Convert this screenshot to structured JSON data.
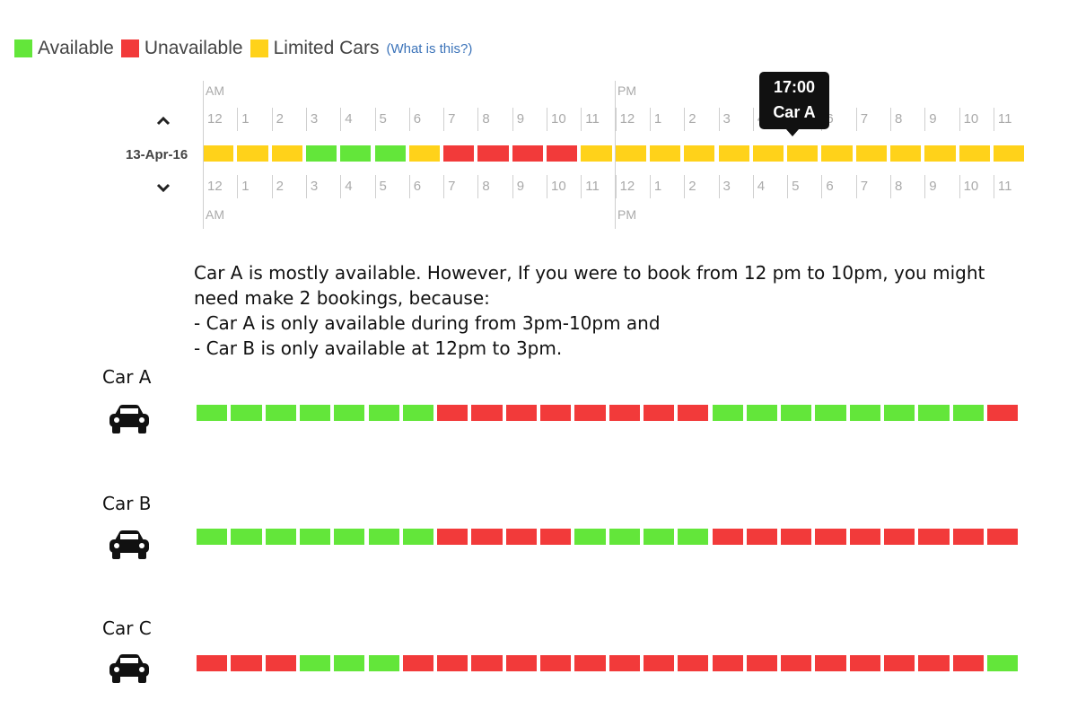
{
  "legend": {
    "items": [
      {
        "label": "Available",
        "color": "#63e63a"
      },
      {
        "label": "Unavailable",
        "color": "#f23a3a"
      },
      {
        "label": "Limited Cars",
        "color": "#ffd21a"
      }
    ],
    "link": "(What is this?)"
  },
  "colors": {
    "available": "#63e63a",
    "unavailable": "#f23a3a",
    "limited": "#ffd21a"
  },
  "timeline": {
    "hours": [
      "12",
      "1",
      "2",
      "3",
      "4",
      "5",
      "6",
      "7",
      "8",
      "9",
      "10",
      "11",
      "12",
      "1",
      "2",
      "3",
      "4",
      "5",
      "6",
      "7",
      "8",
      "9",
      "10",
      "11"
    ],
    "am_label": "AM",
    "pm_label": "PM",
    "date": "13-Apr-16",
    "up_icon": "chevron-up-icon",
    "down_icon": "chevron-down-icon",
    "slots": [
      "limited",
      "limited",
      "limited",
      "available",
      "available",
      "available",
      "limited",
      "unavailable",
      "unavailable",
      "unavailable",
      "unavailable",
      "limited",
      "limited",
      "limited",
      "limited",
      "limited",
      "limited",
      "limited",
      "limited",
      "limited",
      "limited",
      "limited",
      "limited",
      "limited"
    ]
  },
  "tooltip": {
    "time": "17:00",
    "car": "Car A"
  },
  "explanation": [
    "Car A is mostly available. However, If you were to book from 12 pm to 10pm, you might",
    "need make 2 bookings, because:",
    "- Car A is only available during from 3pm-10pm and",
    "- Car B is only available at 12pm to 3pm."
  ],
  "cars": [
    {
      "name": "Car A",
      "icon": "car-icon",
      "slots": [
        "available",
        "available",
        "available",
        "available",
        "available",
        "available",
        "available",
        "unavailable",
        "unavailable",
        "unavailable",
        "unavailable",
        "unavailable",
        "unavailable",
        "unavailable",
        "unavailable",
        "available",
        "available",
        "available",
        "available",
        "available",
        "available",
        "available",
        "available",
        "unavailable"
      ]
    },
    {
      "name": "Car B",
      "icon": "car-icon",
      "slots": [
        "available",
        "available",
        "available",
        "available",
        "available",
        "available",
        "available",
        "unavailable",
        "unavailable",
        "unavailable",
        "unavailable",
        "available",
        "available",
        "available",
        "available",
        "unavailable",
        "unavailable",
        "unavailable",
        "unavailable",
        "unavailable",
        "unavailable",
        "unavailable",
        "unavailable",
        "unavailable"
      ]
    },
    {
      "name": "Car C",
      "icon": "car-icon",
      "slots": [
        "unavailable",
        "unavailable",
        "unavailable",
        "available",
        "available",
        "available",
        "unavailable",
        "unavailable",
        "unavailable",
        "unavailable",
        "unavailable",
        "unavailable",
        "unavailable",
        "unavailable",
        "unavailable",
        "unavailable",
        "unavailable",
        "unavailable",
        "unavailable",
        "unavailable",
        "unavailable",
        "unavailable",
        "unavailable",
        "available"
      ]
    }
  ]
}
